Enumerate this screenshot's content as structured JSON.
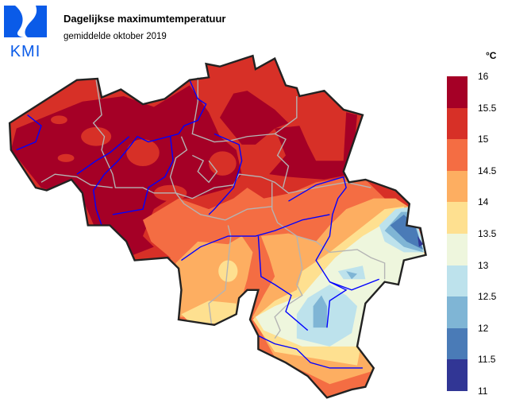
{
  "header": {
    "logo_text": "KMI",
    "title": "Dagelijkse maximumtemperatuur",
    "subtitle": "gemiddelde oktober 2019"
  },
  "legend": {
    "unit": "°C",
    "ticks": [
      "16",
      "15.5",
      "15",
      "14.5",
      "14",
      "13.5",
      "13",
      "12.5",
      "12",
      "11.5",
      "11"
    ],
    "bins": [
      {
        "range": [
          15.5,
          16
        ],
        "color": "#a50026"
      },
      {
        "range": [
          15,
          15.5
        ],
        "color": "#d73027"
      },
      {
        "range": [
          14.5,
          15
        ],
        "color": "#f46d43"
      },
      {
        "range": [
          14,
          14.5
        ],
        "color": "#fdae61"
      },
      {
        "range": [
          13.5,
          14
        ],
        "color": "#fee090"
      },
      {
        "range": [
          13,
          13.5
        ],
        "color": "#eef6dd"
      },
      {
        "range": [
          12.5,
          13
        ],
        "color": "#bde2ec"
      },
      {
        "range": [
          12,
          12.5
        ],
        "color": "#7fb5d5"
      },
      {
        "range": [
          11.5,
          12
        ],
        "color": "#4a7bb7"
      },
      {
        "range": [
          11,
          11.5
        ],
        "color": "#313695"
      }
    ]
  },
  "map": {
    "region": "Belgium",
    "river_color": "#0000ff",
    "province_border_color": "#b4b4b4",
    "country_border_color": "#222222"
  }
}
